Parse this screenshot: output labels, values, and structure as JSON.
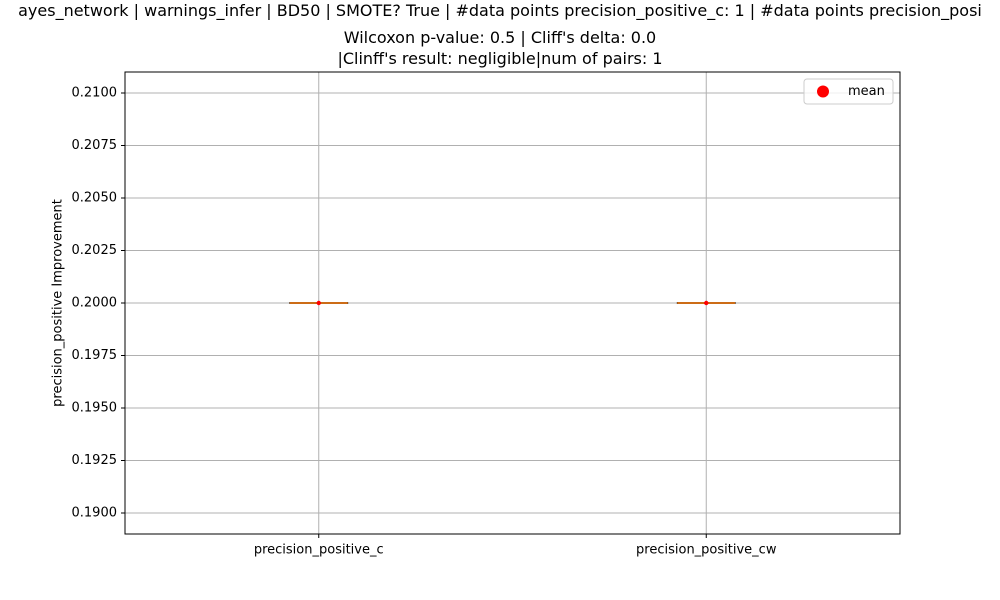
{
  "chart_data": {
    "type": "box",
    "title_lines": [
      "ayes_network | warnings_infer | BD50 | SMOTE? True | #data points precision_positive_c: 1 | #data points precision_posi",
      "Wilcoxon p-value: 0.5 | Cliff's delta: 0.0",
      "|Clinff's result: negligible|num of pairs: 1"
    ],
    "ylabel": "precision_positive Improvement",
    "xlabel": "",
    "ylim": [
      0.189,
      0.211
    ],
    "yticks": [
      0.19,
      0.1925,
      0.195,
      0.1975,
      0.2,
      0.2025,
      0.205,
      0.2075,
      0.21
    ],
    "ytick_labels": [
      "0.1900",
      "0.1925",
      "0.1950",
      "0.1975",
      "0.2000",
      "0.2025",
      "0.2050",
      "0.2075",
      "0.2100"
    ],
    "categories": [
      "precision_positive_c",
      "precision_positive_cw"
    ],
    "boxes": [
      {
        "category": "precision_positive_c",
        "min": 0.2,
        "q1": 0.2,
        "median": 0.2,
        "q3": 0.2,
        "max": 0.2,
        "mean": 0.2
      },
      {
        "category": "precision_positive_cw",
        "min": 0.2,
        "q1": 0.2,
        "median": 0.2,
        "q3": 0.2,
        "max": 0.2,
        "mean": 0.2
      }
    ],
    "grid": true,
    "legend": {
      "position": "top-right",
      "entries": [
        {
          "label": "mean",
          "color": "#ff0000",
          "marker": "circle"
        }
      ]
    },
    "colors": {
      "median": "#ff7f0e",
      "mean": "#ff0000",
      "box": "#000000",
      "grid": "#b0b0b0"
    }
  }
}
